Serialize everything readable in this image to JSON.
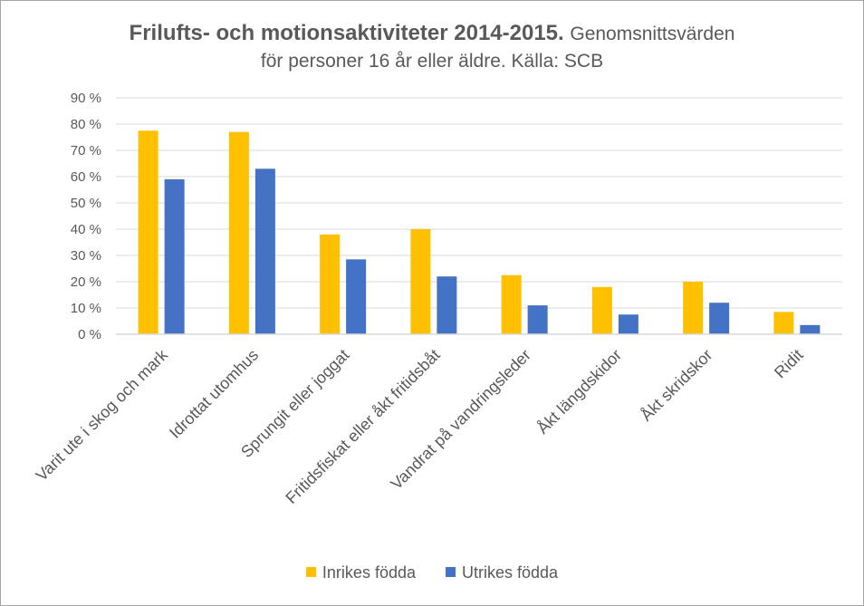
{
  "chart_data": {
    "type": "bar",
    "title": "Frilufts- och motionsaktiviteter 2014-2015.",
    "subtitle_part1": "Genomsnittsvärden",
    "subtitle_part2": "för personer 16 år eller äldre. Källa: SCB",
    "categories": [
      "Varit ute i skog och mark",
      "Idrottat utomhus",
      "Sprungit eller joggat",
      "Fritidsfiskat eller åkt fritidsbåt",
      "Vandrat på vandringsleder",
      "Åkt längdskidor",
      "Åkt skridskor",
      "Ridit"
    ],
    "series": [
      {
        "name": "Inrikes födda",
        "color": "#ffc000",
        "values": [
          77.5,
          77,
          38,
          40,
          22.5,
          18,
          20,
          8.5
        ]
      },
      {
        "name": "Utrikes födda",
        "color": "#4472c4",
        "values": [
          59,
          63,
          28.5,
          22,
          11,
          7.5,
          12,
          3.5
        ]
      }
    ],
    "ylim": [
      0,
      90
    ],
    "ytick_labels": [
      "0 %",
      "10 %",
      "20 %",
      "30 %",
      "40 %",
      "50 %",
      "60 %",
      "70 %",
      "80 %",
      "90 %"
    ],
    "xlabel": "",
    "ylabel": "",
    "grid": true,
    "legend_position": "bottom"
  }
}
